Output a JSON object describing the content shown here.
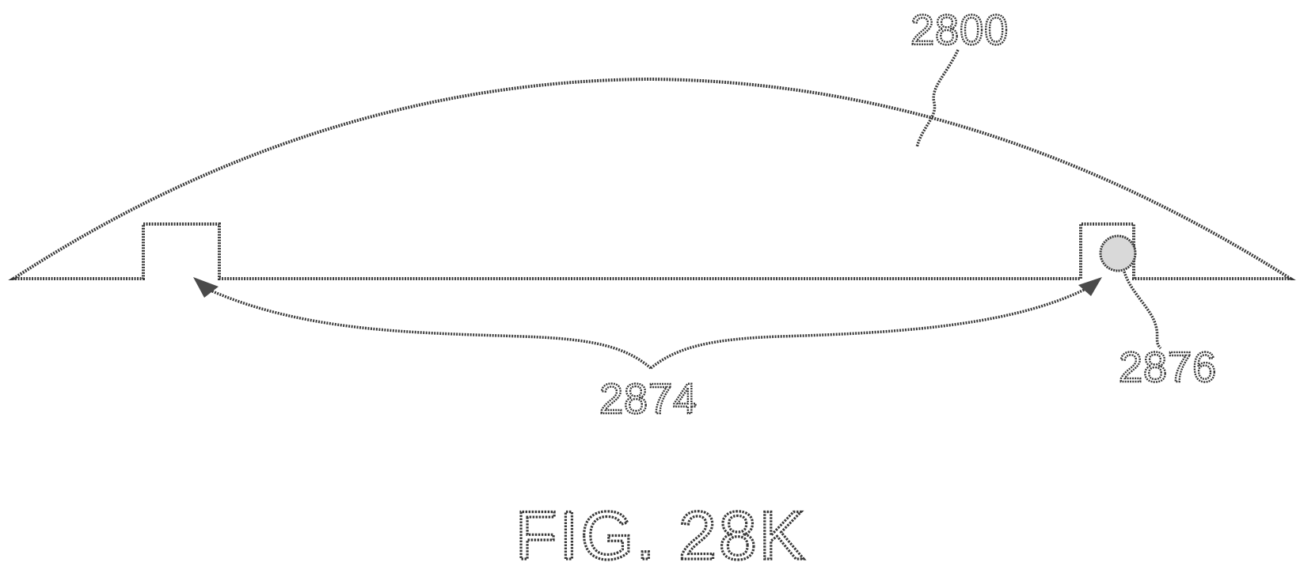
{
  "figure": {
    "title": "FIG. 28K",
    "labels": {
      "body": "2800",
      "span": "2874",
      "element": "2876"
    }
  }
}
